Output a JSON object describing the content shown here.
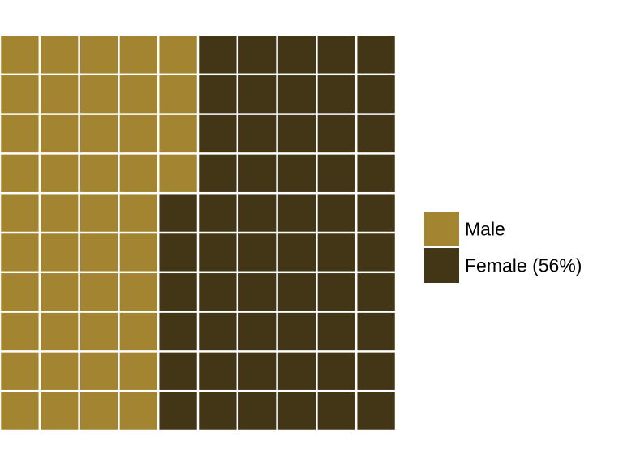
{
  "chart_data": {
    "type": "waffle",
    "grid": {
      "rows": 10,
      "columns": 10,
      "total_cells": 100,
      "fill_order": "column-major, top-to-bottom"
    },
    "categories": [
      "Male",
      "Female (56%)"
    ],
    "values": [
      44,
      56
    ],
    "colors": [
      "#a38430",
      "#433616"
    ],
    "legend": {
      "placement": "right",
      "items": [
        {
          "label": "Male",
          "color": "#a38430"
        },
        {
          "label": "Female (56%)",
          "color": "#433616"
        }
      ]
    },
    "title": "",
    "xlabel": "",
    "ylabel": ""
  }
}
